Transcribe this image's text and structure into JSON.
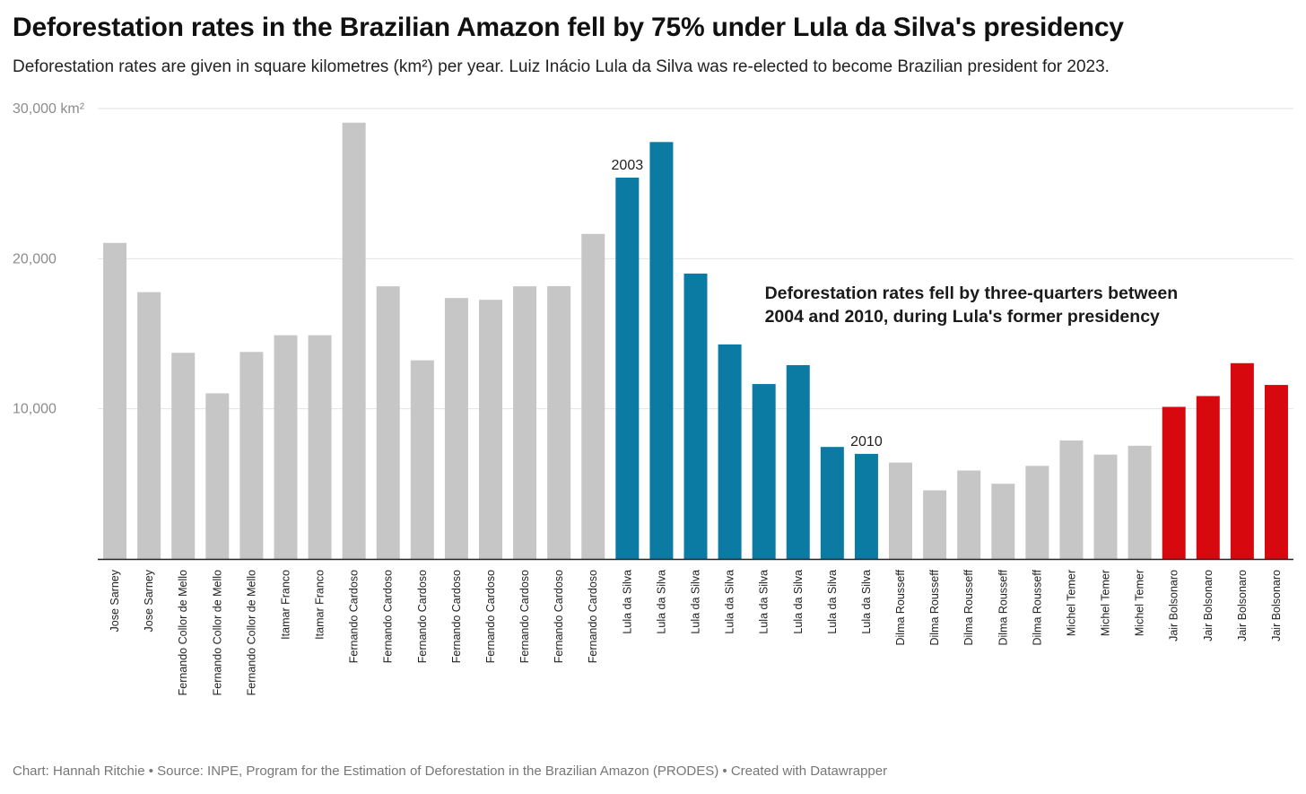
{
  "header": {
    "title": "Deforestation rates in the Brazilian Amazon fell by 75% under Lula da Silva's presidency",
    "subtitle": "Deforestation rates are given in square kilometres (km²) per year. Luiz Inácio Lula da Silva was re-elected to become Brazilian president for 2023."
  },
  "footer": {
    "credit": "Chart: Hannah Ritchie • Source: INPE, Program for the Estimation of Deforestation in the Brazilian Amazon (PRODES) • Created with Datawrapper"
  },
  "colors": {
    "default": "#c6c6c6",
    "lula": "#0b7ba4",
    "bolsonaro": "#d7090f",
    "grid": "#e2e2e2",
    "tick_label": "#8c8c8c",
    "axis": "#222222"
  },
  "chart_data": {
    "type": "bar",
    "categories": [
      "Jose Sarney",
      "Jose Sarney",
      "Fernando Collor de Mello",
      "Fernando Collor de Mello",
      "Fernando Collor de Mello",
      "Itamar Franco",
      "Itamar Franco",
      "Fernando Cardoso",
      "Fernando Cardoso",
      "Fernando Cardoso",
      "Fernando Cardoso",
      "Fernando Cardoso",
      "Fernando Cardoso",
      "Fernando Cardoso",
      "Fernando Cardoso",
      "Lula da Silva",
      "Lula da Silva",
      "Lula da Silva",
      "Lula da Silva",
      "Lula da Silva",
      "Lula da Silva",
      "Lula da Silva",
      "Lula da Silva",
      "Dilma Rousseff",
      "Dilma Rousseff",
      "Dilma Rousseff",
      "Dilma Rousseff",
      "Dilma Rousseff",
      "Michel Temer",
      "Michel Temer",
      "Michel Temer",
      "Jair Bolsonaro",
      "Jair Bolsonaro",
      "Jair Bolsonaro",
      "Jair Bolsonaro"
    ],
    "values": [
      21050,
      17770,
      13730,
      11030,
      13790,
      14900,
      14900,
      29060,
      18160,
      13230,
      17380,
      17260,
      18160,
      18170,
      21650,
      25400,
      27770,
      19010,
      14290,
      11650,
      12910,
      7460,
      7000,
      6420,
      4570,
      5890,
      5010,
      6200,
      7890,
      6950,
      7540,
      10130,
      10850,
      13040,
      11590
    ],
    "highlight": [
      "default",
      "default",
      "default",
      "default",
      "default",
      "default",
      "default",
      "default",
      "default",
      "default",
      "default",
      "default",
      "default",
      "default",
      "default",
      "lula",
      "lula",
      "lula",
      "lula",
      "lula",
      "lula",
      "lula",
      "lula",
      "default",
      "default",
      "default",
      "default",
      "default",
      "default",
      "default",
      "default",
      "bolsonaro",
      "bolsonaro",
      "bolsonaro",
      "bolsonaro"
    ],
    "y_ticks": [
      {
        "value": 30000,
        "label": "30,000 km²"
      },
      {
        "value": 20000,
        "label": "20,000"
      },
      {
        "value": 10000,
        "label": "10,000"
      }
    ],
    "ylim": [
      0,
      30000
    ],
    "grid": true,
    "bar_labels": [
      {
        "index": 15,
        "text": "2003"
      },
      {
        "index": 22,
        "text": "2010"
      }
    ],
    "annotation": {
      "lines": [
        "Deforestation rates fell by three-quarters between",
        "2004 and 2010, during Lula's former presidency"
      ],
      "anchor_index": 18,
      "anchor_value": 17500
    }
  }
}
